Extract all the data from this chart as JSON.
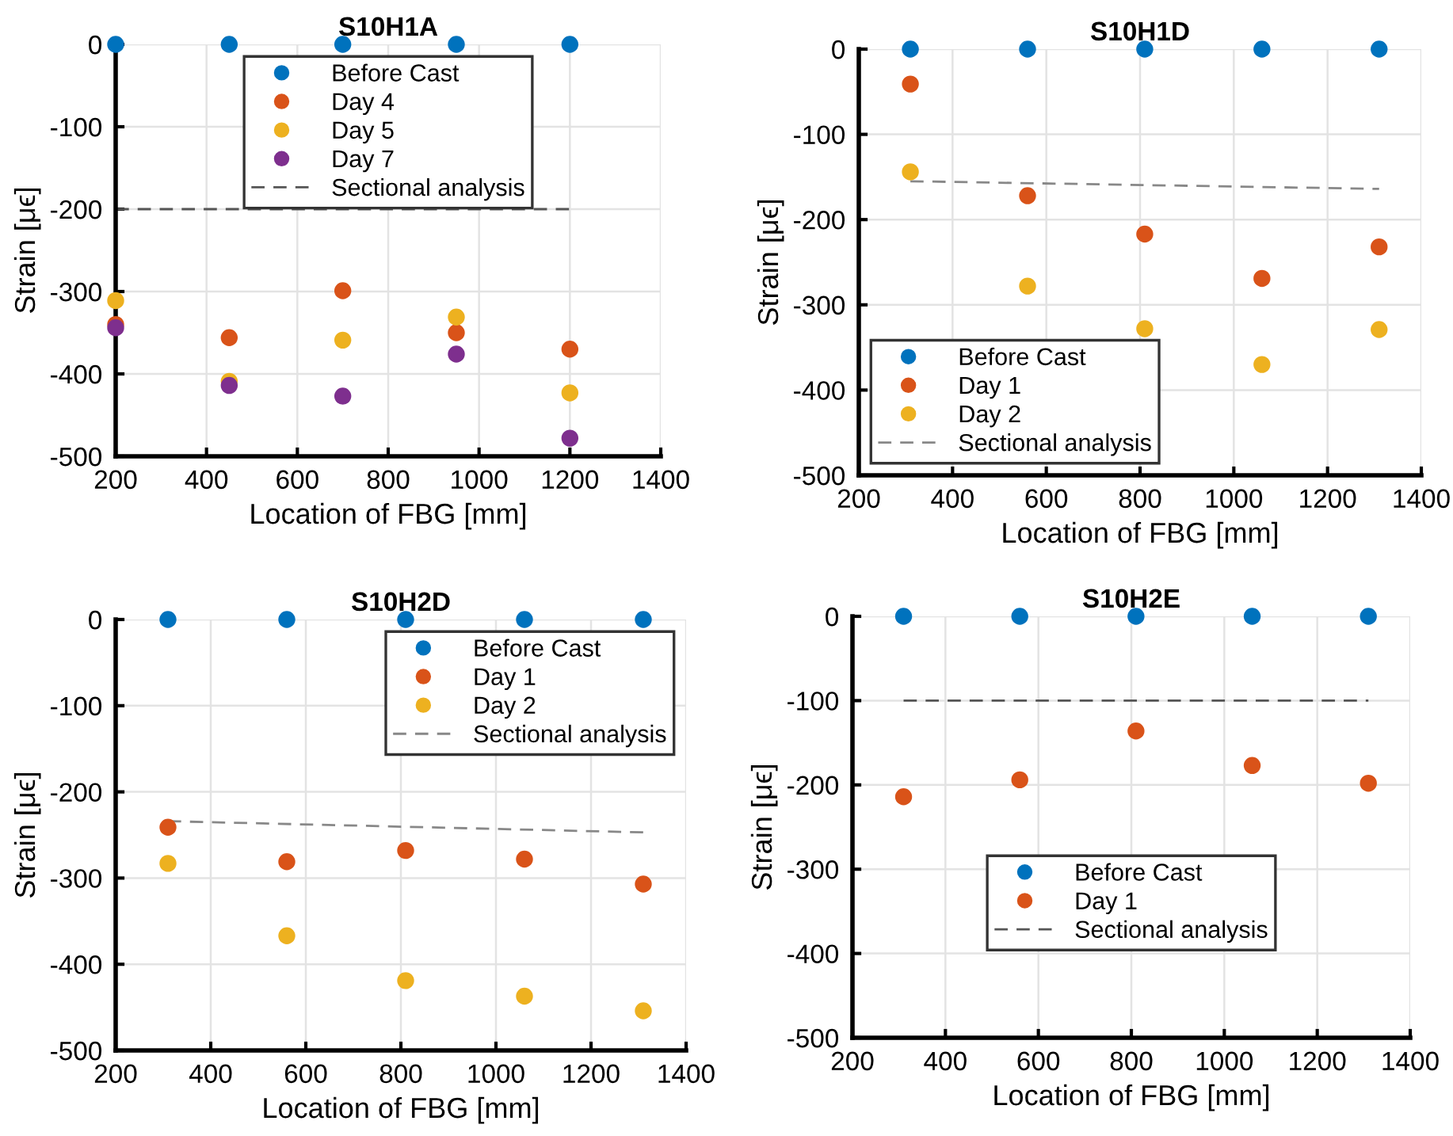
{
  "chart_data": [
    {
      "type": "scatter",
      "title": "S10H1A",
      "xlabel": "Location of FBG [mm]",
      "ylabel": "Strain [μϵ]",
      "x": [
        200,
        450,
        700,
        950,
        1200
      ],
      "xlim": [
        200,
        1400
      ],
      "xticks": [
        200,
        400,
        600,
        800,
        1000,
        1200,
        1400
      ],
      "ylim": [
        -500,
        0
      ],
      "yticks": [
        -500,
        -400,
        -300,
        -200,
        -100,
        0
      ],
      "grid": true,
      "legend": "top",
      "marker": "circle",
      "series": [
        {
          "name": "Before Cast",
          "color": "#0072bd",
          "values": [
            0,
            0,
            0,
            0,
            0
          ]
        },
        {
          "name": "Day 4",
          "color": "#d95319",
          "values": [
            -340,
            -356,
            -299,
            -350,
            -370
          ]
        },
        {
          "name": "Day 5",
          "color": "#edb120",
          "values": [
            -311,
            -409,
            -359,
            -331,
            -423
          ]
        },
        {
          "name": "Day 7",
          "color": "#7e2f8e",
          "values": [
            -344,
            -414,
            -427,
            -376,
            -478
          ]
        },
        {
          "name": "Sectional analysis",
          "type": "line",
          "line_style": "dashed",
          "marker": "none",
          "color": "#555555",
          "x": [
            200,
            1200
          ],
          "values": [
            -200,
            -200
          ]
        }
      ]
    },
    {
      "type": "scatter",
      "title": "S10H1D",
      "xlabel": "Location of FBG [mm]",
      "ylabel": "Strain [μϵ]",
      "x": [
        310,
        560,
        810,
        1060,
        1310
      ],
      "xlim": [
        200,
        1400
      ],
      "xticks": [
        200,
        400,
        600,
        800,
        1000,
        1200,
        1400
      ],
      "ylim": [
        -500,
        0
      ],
      "yticks": [
        -500,
        -400,
        -300,
        -200,
        -100,
        0
      ],
      "grid": true,
      "legend": "bottom left",
      "marker": "circle",
      "series": [
        {
          "name": "Before Cast",
          "color": "#0072bd",
          "values": [
            0,
            0,
            0,
            0,
            0
          ]
        },
        {
          "name": "Day 1",
          "color": "#d95319",
          "values": [
            -41,
            -172,
            -217,
            -269,
            -232
          ]
        },
        {
          "name": "Day 2",
          "color": "#edb120",
          "values": [
            -144,
            -278,
            -328,
            -370,
            -329
          ]
        },
        {
          "name": "Sectional analysis",
          "type": "line",
          "line_style": "dashed",
          "marker": "none",
          "color": "#888888",
          "x": [
            310,
            1310
          ],
          "values": [
            -155,
            -164
          ]
        }
      ]
    },
    {
      "type": "scatter",
      "title": "S10H2D",
      "xlabel": "Location of FBG [mm]",
      "ylabel": "Strain [μϵ]",
      "x": [
        310,
        560,
        810,
        1060,
        1310
      ],
      "xlim": [
        200,
        1400
      ],
      "xticks": [
        200,
        400,
        600,
        800,
        1000,
        1200,
        1400
      ],
      "ylim": [
        -500,
        0
      ],
      "yticks": [
        -500,
        -400,
        -300,
        -200,
        -100,
        0
      ],
      "grid": true,
      "legend": "top right",
      "marker": "circle",
      "series": [
        {
          "name": "Before Cast",
          "color": "#0072bd",
          "values": [
            0,
            0,
            0,
            0,
            0
          ]
        },
        {
          "name": "Day 1",
          "color": "#d95319",
          "values": [
            -241,
            -281,
            -268,
            -278,
            -307
          ]
        },
        {
          "name": "Day 2",
          "color": "#edb120",
          "values": [
            -283,
            -367,
            -419,
            -437,
            -454
          ]
        },
        {
          "name": "Sectional analysis",
          "type": "line",
          "line_style": "dashed",
          "marker": "none",
          "color": "#888888",
          "x": [
            310,
            1310
          ],
          "values": [
            -234,
            -247
          ]
        }
      ]
    },
    {
      "type": "scatter",
      "title": "S10H2E",
      "xlabel": "Location of FBG [mm]",
      "ylabel": "Strain [μϵ]",
      "x": [
        310,
        560,
        810,
        1060,
        1310
      ],
      "xlim": [
        200,
        1400
      ],
      "xticks": [
        200,
        400,
        600,
        800,
        1000,
        1200,
        1400
      ],
      "ylim": [
        -500,
        0
      ],
      "yticks": [
        -500,
        -400,
        -300,
        -200,
        -100,
        0
      ],
      "grid": true,
      "legend": "center",
      "marker": "circle",
      "series": [
        {
          "name": "Before Cast",
          "color": "#0072bd",
          "values": [
            0,
            0,
            0,
            0,
            0
          ]
        },
        {
          "name": "Day 1",
          "color": "#d95319",
          "values": [
            -214,
            -194,
            -136,
            -177,
            -198
          ]
        },
        {
          "name": "Sectional analysis",
          "type": "line",
          "line_style": "dashed",
          "marker": "none",
          "color": "#555555",
          "x": [
            310,
            1310
          ],
          "values": [
            -100,
            -100
          ]
        }
      ]
    }
  ]
}
